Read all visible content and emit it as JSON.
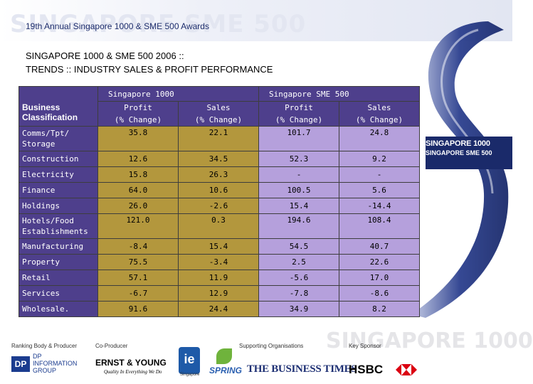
{
  "header": {
    "watermark": "SINGAPORE SME 500",
    "awards_title": "19th Annual Singapore 1000 & SME 500 Awards"
  },
  "slide": {
    "title_line1": "SINGAPORE 1000 & SME 500 2006 ::",
    "title_line2": "TRENDS :: INDUSTRY SALES & PROFIT PERFORMANCE"
  },
  "side_logo": {
    "line1": "SINGAPORE 1000",
    "line2": "SINGAPORE SME 500"
  },
  "table": {
    "group1": "Singapore 1000",
    "group2": "Singapore SME 500",
    "class_header_l1": "Business",
    "class_header_l2": "Classification",
    "col_profit_l1": "Profit",
    "col_profit_l2": "(% Change)",
    "col_sales_l1": "Sales",
    "col_sales_l2": "(% Change)",
    "rows": [
      {
        "label": "Comms/Tpt/\nStorage",
        "p1000": "35.8",
        "s1000": "22.1",
        "p500": "101.7",
        "s500": "24.8"
      },
      {
        "label": "Construction",
        "p1000": "12.6",
        "s1000": "34.5",
        "p500": "52.3",
        "s500": "9.2"
      },
      {
        "label": "Electricity",
        "p1000": "15.8",
        "s1000": "26.3",
        "p500": "-",
        "s500": "-"
      },
      {
        "label": "Finance",
        "p1000": "64.0",
        "s1000": "10.6",
        "p500": "100.5",
        "s500": "5.6"
      },
      {
        "label": "Holdings",
        "p1000": "26.0",
        "s1000": "-2.6",
        "p500": "15.4",
        "s500": "-14.4"
      },
      {
        "label": "Hotels/Food\nEstablishments",
        "p1000": "121.0",
        "s1000": "0.3",
        "p500": "194.6",
        "s500": "108.4"
      },
      {
        "label": "Manufacturing",
        "p1000": "-8.4",
        "s1000": "15.4",
        "p500": "54.5",
        "s500": "40.7"
      },
      {
        "label": "Property",
        "p1000": "75.5",
        "s1000": "-3.4",
        "p500": "2.5",
        "s500": "22.6"
      },
      {
        "label": "Retail",
        "p1000": "57.1",
        "s1000": "11.9",
        "p500": "-5.6",
        "s500": "17.0"
      },
      {
        "label": "Services",
        "p1000": "-6.7",
        "s1000": "12.9",
        "p500": "-7.8",
        "s500": "-8.6"
      },
      {
        "label": "Wholesale.",
        "p1000": "91.6",
        "s1000": "24.4",
        "p500": "34.9",
        "s500": "8.2"
      }
    ]
  },
  "footer": {
    "watermark": "SINGAPORE 1000",
    "label_ranking": "Ranking Body & Producer",
    "label_coproducer": "Co-Producer",
    "label_supporting": "Supporting Organisations",
    "label_sponsor": "Key Sponsor",
    "dp_mark": "DP",
    "dp_l1": "DP",
    "dp_l2": "INFORMATION",
    "dp_l3": "GROUP",
    "ey": "ERNST & YOUNG",
    "ey_tagline": "Quality In Everything We Do",
    "ie": "ie",
    "ie_sub": "Singapore",
    "spring": "SPRING",
    "business_times": "THE BUSINESS TIMES",
    "hsbc": "HSBC"
  },
  "colors": {
    "header_purple": "#4e3f8c",
    "sg1000_cell": "#b3973d",
    "sme500_cell": "#b5a0dc",
    "logo_blue": "#1a2a6a"
  }
}
